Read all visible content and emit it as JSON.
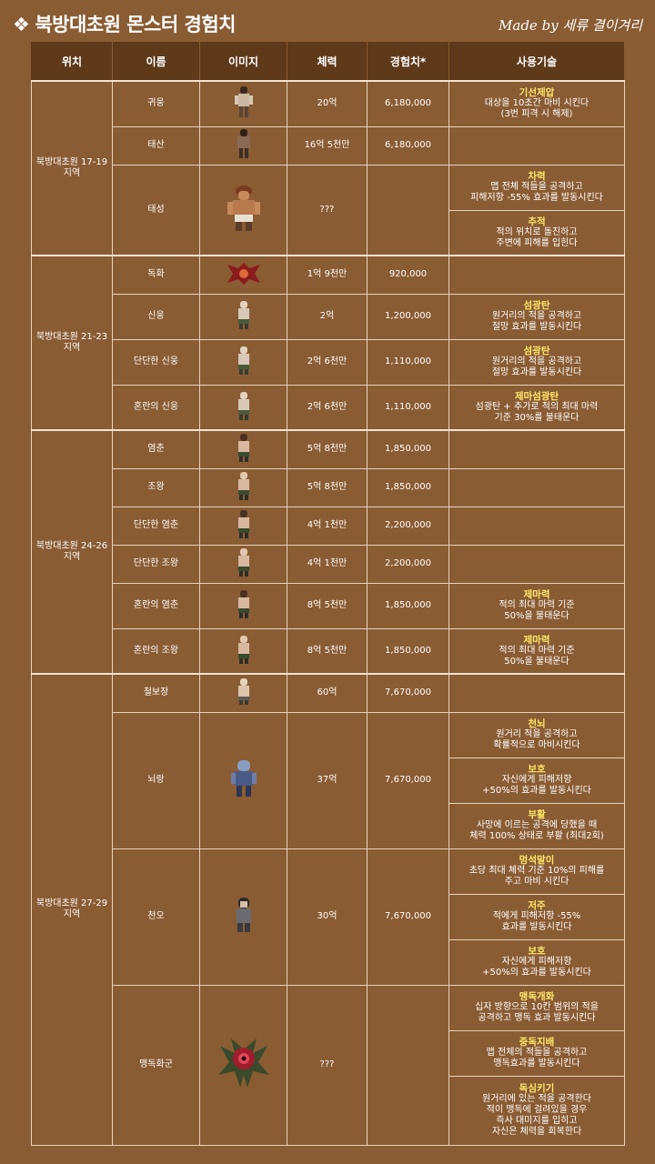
{
  "header": {
    "diamond": "❖",
    "title": "북방대초원 몬스터 경험치",
    "credit": "Made by 세류 결이겨리"
  },
  "columns": [
    "위치",
    "이름",
    "이미지",
    "체력",
    "경험치*",
    "사용기술"
  ],
  "regions": [
    {
      "label": "북방대초원 17-19 지역"
    },
    {
      "label": "북방대초원 21-23 지역"
    },
    {
      "label": "북방대초원 24-26 지역"
    },
    {
      "label": "북방대초원 27-29 지역"
    }
  ],
  "monsters": [
    {
      "name": "귀웅",
      "hp": "20억",
      "exp": "6,180,000"
    },
    {
      "name": "태산",
      "hp": "16억 5천만",
      "exp": "6,180,000"
    },
    {
      "name": "태성",
      "hp": "???",
      "exp": ""
    },
    {
      "name": "독화",
      "hp": "1억 9천만",
      "exp": "920,000"
    },
    {
      "name": "신웅",
      "hp": "2억",
      "exp": "1,200,000"
    },
    {
      "name": "단단한 신웅",
      "hp": "2억 6천만",
      "exp": "1,110,000"
    },
    {
      "name": "혼란의 신웅",
      "hp": "2억 6천만",
      "exp": "1,110,000"
    },
    {
      "name": "염춘",
      "hp": "5억 8천만",
      "exp": "1,850,000"
    },
    {
      "name": "조왕",
      "hp": "5억 8천만",
      "exp": "1,850,000"
    },
    {
      "name": "단단한 염춘",
      "hp": "4억 1천만",
      "exp": "2,200,000"
    },
    {
      "name": "단단한 조왕",
      "hp": "4억 1천만",
      "exp": "2,200,000"
    },
    {
      "name": "혼란의 염춘",
      "hp": "8억 5천만",
      "exp": "1,850,000"
    },
    {
      "name": "혼란의 조왕",
      "hp": "8억 5천만",
      "exp": "1,850,000"
    },
    {
      "name": "철보장",
      "hp": "60억",
      "exp": "7,670,000"
    },
    {
      "name": "뇌랑",
      "hp": "37억",
      "exp": "7,670,000"
    },
    {
      "name": "천오",
      "hp": "30억",
      "exp": "7,670,000"
    },
    {
      "name": "맹독화군",
      "hp": "???",
      "exp": ""
    }
  ],
  "skills": [
    {
      "name": "기선제압",
      "desc": "대상을 10초간 마비 시킨다\n(3번 피격 시 해제)"
    },
    {
      "name": "",
      "desc": ""
    },
    {
      "name": "차력",
      "desc": "맵 전체 적들을 공격하고\n피해저항 -55% 효과를 발동시킨다"
    },
    {
      "name": "추적",
      "desc": "적의 위치로 돌진하고\n주변에 피해를 입힌다"
    },
    {
      "name": "",
      "desc": ""
    },
    {
      "name": "섬광탄",
      "desc": "원거리의 적을 공격하고\n절망 효과를 발동시킨다"
    },
    {
      "name": "섬광탄",
      "desc": "원거리의 적을 공격하고\n절망 효과를 발동시킨다"
    },
    {
      "name": "제마섬광탄",
      "desc": "섬광탄 + 추가로 적의 최대 마력\n기준 30%를 불태운다"
    },
    {
      "name": "",
      "desc": ""
    },
    {
      "name": "",
      "desc": ""
    },
    {
      "name": "",
      "desc": ""
    },
    {
      "name": "",
      "desc": ""
    },
    {
      "name": "제마력",
      "desc": "적의 최대 마력 기준\n50%을 불태운다"
    },
    {
      "name": "제마력",
      "desc": "적의 최대 마력 기준\n50%을 불태운다"
    },
    {
      "name": "",
      "desc": ""
    },
    {
      "name": "천뇌",
      "desc": "원거리 적을 공격하고\n확률적으로 마비시킨다"
    },
    {
      "name": "보호",
      "desc": "자신에게 피해저항\n+50%의 효과를 발동시킨다"
    },
    {
      "name": "부활",
      "desc": "사망에 이르는 공격에 당했을 때\n체력 100% 상태로 부활 (최대2회)"
    },
    {
      "name": "멍석말이",
      "desc": "초당 최대 체력 기준 10%의 피해를\n주고 마비 시킨다"
    },
    {
      "name": "저주",
      "desc": "적에게 피해저항 -55%\n효과를 발동시킨다"
    },
    {
      "name": "보호",
      "desc": "자신에게 피해저항\n+50%의 효과를 발동시킨다"
    },
    {
      "name": "맹독개화",
      "desc": "십자 방향으로 10칸 범위의 적을\n공격하고 맹독 효과 발동시킨다"
    },
    {
      "name": "중독지배",
      "desc": "맵 전체의 적들을 공격하고\n맹독효과를 발동시킨다"
    },
    {
      "name": "독심키기",
      "desc": "원거리에 있는 적을 공격한다\n적이 맹독에 걸려있을 경우\n즉사 대미지를 입히고\n자신은 체력을 회복한다"
    }
  ]
}
